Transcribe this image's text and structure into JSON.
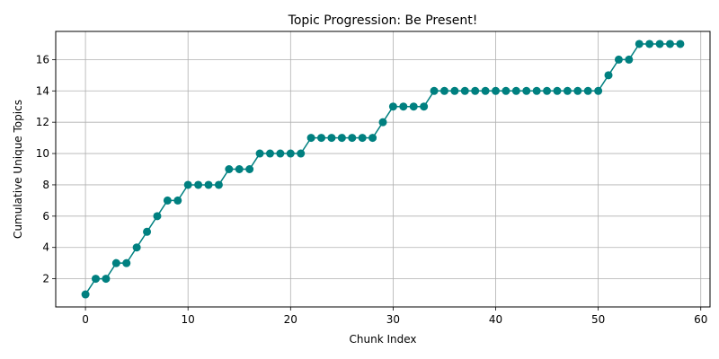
{
  "chart_data": {
    "type": "line",
    "title": "Topic Progression: Be Present!",
    "xlabel": "Chunk Index",
    "ylabel": "Cumulative Unique Topics",
    "xlim": [
      -2.9,
      60.9
    ],
    "ylim": [
      0.2,
      17.8
    ],
    "xticks": [
      0,
      10,
      20,
      30,
      40,
      50,
      60
    ],
    "yticks": [
      2,
      4,
      6,
      8,
      10,
      12,
      14,
      16
    ],
    "grid": true,
    "color": "#008080",
    "marker": "circle",
    "series": [
      {
        "x": [
          0,
          1,
          2,
          3,
          4,
          5,
          6,
          7,
          8,
          9,
          10,
          11,
          12,
          13,
          14,
          15,
          16,
          17,
          18,
          19,
          20,
          21,
          22,
          23,
          24,
          25,
          26,
          27,
          28,
          29,
          30,
          31,
          32,
          33,
          34,
          35,
          36,
          37,
          38,
          39,
          40,
          41,
          42,
          43,
          44,
          45,
          46,
          47,
          48,
          49,
          50,
          51,
          52,
          53,
          54,
          55,
          56,
          57,
          58
        ],
        "values": [
          1,
          2,
          2,
          3,
          3,
          4,
          5,
          6,
          7,
          7,
          8,
          8,
          8,
          8,
          9,
          9,
          9,
          10,
          10,
          10,
          10,
          10,
          11,
          11,
          11,
          11,
          11,
          11,
          11,
          12,
          13,
          13,
          13,
          13,
          14,
          14,
          14,
          14,
          14,
          14,
          14,
          14,
          14,
          14,
          14,
          14,
          14,
          14,
          14,
          14,
          14,
          15,
          16,
          16,
          17,
          17,
          17,
          17,
          17
        ]
      }
    ]
  }
}
